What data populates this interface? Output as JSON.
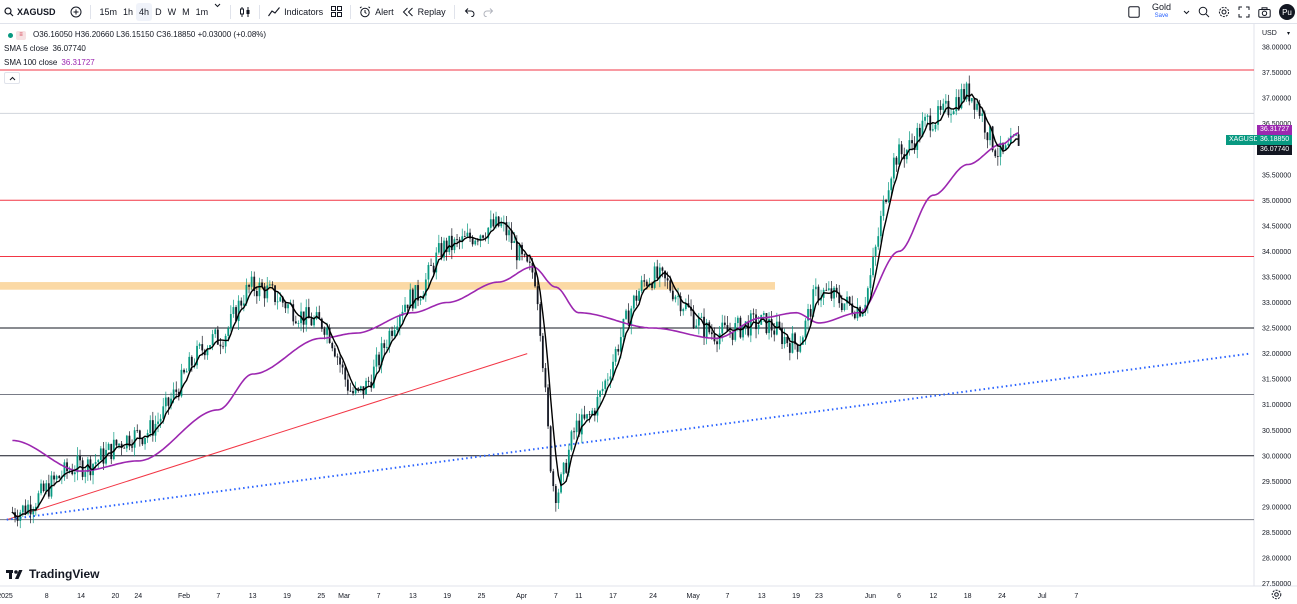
{
  "toolbar": {
    "symbol": "XAGUSD",
    "timeframes": [
      "15m",
      "1h",
      "4h",
      "D",
      "W",
      "M",
      "1m"
    ],
    "active_timeframe": "4h",
    "indicators_label": "Indicators",
    "alert_label": "Alert",
    "replay_label": "Replay",
    "layout_name": "Gold",
    "layout_save_label": "Save",
    "publish_label": "Pu"
  },
  "legend": {
    "ohlc": "O36.16050 H36.20660 L36.15150 C36.18850 +0.03000 (+0.08%)",
    "sma5_label": "SMA 5 close",
    "sma5_value": "36.07740",
    "sma100_label": "SMA 100 close",
    "sma100_value": "36.31727"
  },
  "price_scale": {
    "currency": "USD",
    "ticks": [
      "38.00000",
      "37.50000",
      "37.00000",
      "36.50000",
      "36.00000",
      "35.50000",
      "35.00000",
      "34.50000",
      "34.00000",
      "33.50000",
      "33.00000",
      "32.50000",
      "32.00000",
      "31.50000",
      "31.00000",
      "30.50000",
      "30.00000",
      "29.50000",
      "29.00000",
      "28.50000",
      "28.00000",
      "27.50000"
    ],
    "tag_sma100": "36.31727",
    "tag_symbol": "XAGUSD",
    "tag_price": "36.18850",
    "tag_sma5": "36.07740"
  },
  "time_scale": {
    "labels": [
      "2025",
      "8",
      "14",
      "20",
      "24",
      "Feb",
      "7",
      "13",
      "19",
      "25",
      "Mar",
      "7",
      "13",
      "19",
      "25",
      "Apr",
      "7",
      "11",
      "17",
      "24",
      "May",
      "7",
      "13",
      "19",
      "23",
      "Jun",
      "6",
      "12",
      "18",
      "24",
      "Jul",
      "7"
    ]
  },
  "colors": {
    "up": "#089981",
    "down": "#131722",
    "sma5": "#000000",
    "sma100": "#9c27b0",
    "resistance": "#f23645",
    "support": "#131722",
    "zone": "#fbd9a5",
    "trend_dotted": "#2962ff",
    "trend_red": "#f23645"
  },
  "chart_data": {
    "type": "candlestick",
    "symbol": "XAGUSD",
    "interval": "4h",
    "x": [
      "2025-01-02",
      "2025-01-14",
      "2025-01-24",
      "2025-02-07",
      "2025-02-13",
      "2025-02-25",
      "2025-03-03",
      "2025-03-13",
      "2025-03-19",
      "2025-03-28",
      "2025-04-03",
      "2025-04-07",
      "2025-04-11",
      "2025-04-24",
      "2025-05-05",
      "2025-05-13",
      "2025-05-19",
      "2025-05-23",
      "2025-05-30",
      "2025-06-06",
      "2025-06-12",
      "2025-06-18",
      "2025-06-24",
      "2025-06-27"
    ],
    "y": [
      28.9,
      29.8,
      30.4,
      32.3,
      33.3,
      32.6,
      31.2,
      33.1,
      34.1,
      34.5,
      33.6,
      29.3,
      30.6,
      33.5,
      32.4,
      32.6,
      32.2,
      33.2,
      32.9,
      35.9,
      36.6,
      37.1,
      35.9,
      36.19
    ],
    "sma100": [
      30.3,
      29.7,
      29.9,
      30.9,
      31.6,
      32.3,
      32.4,
      32.8,
      33.0,
      33.4,
      33.7,
      33.3,
      32.8,
      32.5,
      32.3,
      32.7,
      32.8,
      32.6,
      32.8,
      34.0,
      35.1,
      35.7,
      36.1,
      36.32
    ],
    "horizontal_levels": [
      37.55,
      35.0,
      33.9,
      32.5,
      31.2,
      30.0,
      28.75
    ],
    "zone": [
      33.25,
      33.4
    ],
    "ylim": [
      27.5,
      38.0
    ],
    "grid": false
  }
}
